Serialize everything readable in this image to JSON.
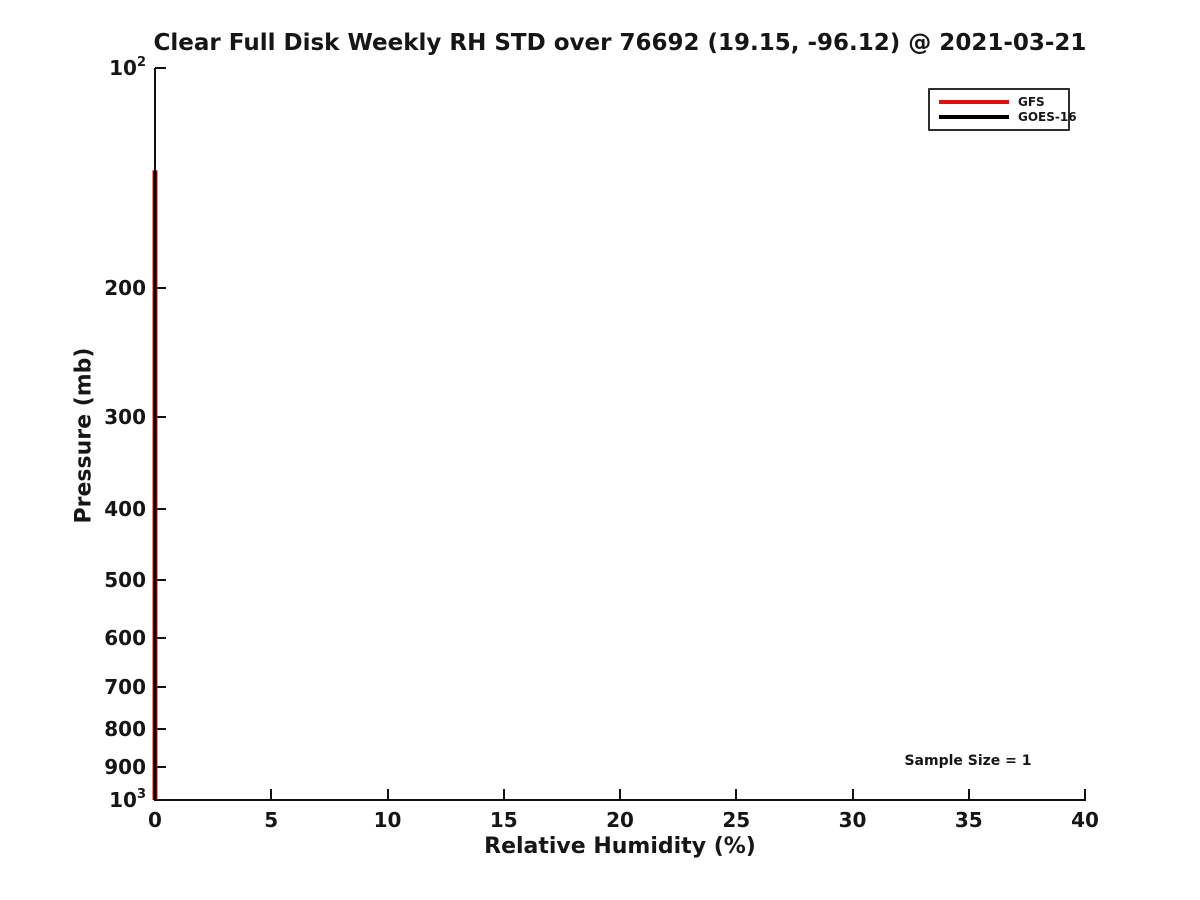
{
  "title": "Clear Full Disk Weekly RH STD over 76692 (19.15, -96.12) @ 2021-03-21",
  "axes": {
    "x_label": "Relative Humidity (%)",
    "y_label": "Pressure (mb)"
  },
  "legend": {
    "position": "upper right",
    "items": [
      {
        "label": "GFS",
        "color": "#dd0f0f"
      },
      {
        "label": "GOES-16",
        "color": "#000000"
      }
    ]
  },
  "annotation": "Sample Size = 1",
  "colors": {
    "background": "#ffffff",
    "text": "#161616",
    "axis": "#111111",
    "gfs_red": "#dd0f0f",
    "goes_black": "#000000"
  },
  "chart_data": {
    "type": "line",
    "title": "Clear Full Disk Weekly RH STD over 76692 (19.15, -96.12) @ 2021-03-21",
    "xlabel": "Relative Humidity (%)",
    "ylabel": "Pressure (mb)",
    "xlim": [
      0,
      40
    ],
    "ylim": [
      100,
      1000
    ],
    "y_scale": "log",
    "y_inverted": true,
    "grid": false,
    "legend_position": "upper right",
    "x_ticks": [
      0,
      5,
      10,
      15,
      20,
      25,
      30,
      35,
      40
    ],
    "y_ticks": [
      {
        "value": 100,
        "base": "10",
        "exp": "2"
      },
      {
        "value": 200,
        "label": "200"
      },
      {
        "value": 300,
        "label": "300"
      },
      {
        "value": 400,
        "label": "400"
      },
      {
        "value": 500,
        "label": "500"
      },
      {
        "value": 600,
        "label": "600"
      },
      {
        "value": 700,
        "label": "700"
      },
      {
        "value": 800,
        "label": "800"
      },
      {
        "value": 900,
        "label": "900"
      },
      {
        "value": 1000,
        "base": "10",
        "exp": "3"
      }
    ],
    "sample_size": 1,
    "series": [
      {
        "name": "GFS",
        "color": "#dd0f0f",
        "line_width": 5,
        "pressure_mb": [
          138,
          200,
          250,
          300,
          400,
          500,
          600,
          700,
          800,
          900,
          1000
        ],
        "rh_std": [
          0,
          0,
          0,
          0,
          0,
          0,
          0,
          0,
          0,
          0,
          0
        ]
      },
      {
        "name": "GOES-16",
        "color": "#000000",
        "line_width": 3,
        "pressure_mb": [
          138,
          200,
          250,
          300,
          400,
          500,
          600,
          700,
          800,
          900,
          1000
        ],
        "rh_std": [
          0,
          0,
          0,
          0,
          0,
          0,
          0,
          0,
          0,
          0,
          0
        ]
      }
    ]
  }
}
